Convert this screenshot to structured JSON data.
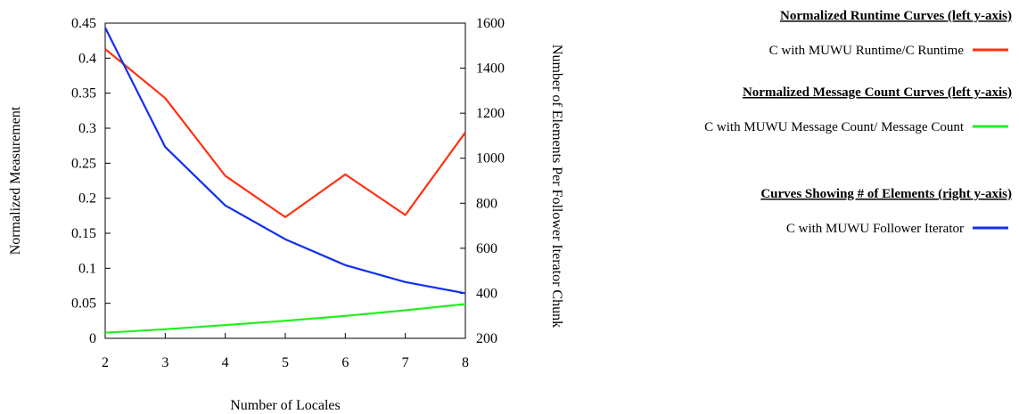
{
  "chart_data": {
    "type": "line",
    "xlabel": "Number of Locales",
    "ylabel_left": "Normalized Measurement",
    "ylabel_right": "Number of Elements Per Follower Iterator Chunk",
    "x": [
      2,
      3,
      4,
      5,
      6,
      7,
      8
    ],
    "x_ticks": [
      "2",
      "3",
      "4",
      "5",
      "6",
      "7",
      "8"
    ],
    "ylim_left": [
      0,
      0.45
    ],
    "y_ticks_left": [
      "0",
      "0.05",
      "0.1",
      "0.15",
      "0.2",
      "0.25",
      "0.3",
      "0.35",
      "0.4",
      "0.45"
    ],
    "ylim_right": [
      200,
      1600
    ],
    "y_ticks_right": [
      "200",
      "400",
      "600",
      "800",
      "1000",
      "1200",
      "1400",
      "1600"
    ],
    "grid": false,
    "series": [
      {
        "name": "C with MUWU Runtime/C Runtime",
        "axis": "left",
        "color": "#ff3010",
        "values": [
          0.413,
          0.343,
          0.232,
          0.173,
          0.234,
          0.176,
          0.294
        ]
      },
      {
        "name": "C with MUWU Message Count/ Message Count",
        "axis": "left",
        "color": "#22ee22",
        "values": [
          0.008,
          0.013,
          0.019,
          0.025,
          0.032,
          0.04,
          0.049
        ]
      },
      {
        "name": "C with MUWU Follower Iterator",
        "axis": "right",
        "color": "#1030ee",
        "values": [
          1580,
          1050,
          790,
          640,
          525,
          450,
          400
        ]
      }
    ],
    "legend": {
      "placement": "right",
      "groups": [
        {
          "heading": "Normalized Runtime Curves (left y-axis)",
          "series_index": 0
        },
        {
          "heading": "Normalized Message Count Curves (left y-axis)",
          "series_index": 1
        },
        {
          "heading": "Curves Showing # of Elements (right y-axis)",
          "series_index": 2
        }
      ]
    }
  }
}
